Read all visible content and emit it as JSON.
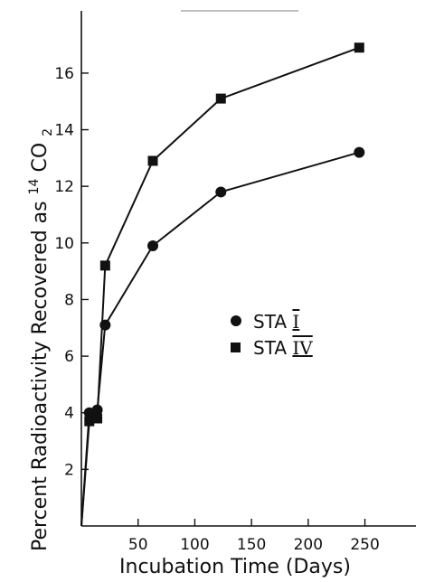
{
  "chart_data": {
    "type": "line",
    "title": "",
    "xlabel": "Incubation Time (Days)",
    "ylabel": "Percent Radioactivity Recovered as ",
    "ylabel_isotope": "14",
    "ylabel_compound": "CO",
    "ylabel_subscript": "2",
    "xlim": [
      0,
      295
    ],
    "ylim": [
      0,
      18.2
    ],
    "x_ticks": [
      50,
      100,
      150,
      200,
      250
    ],
    "x_tick_labels": [
      "50",
      "100",
      "150",
      "200",
      "250"
    ],
    "y_ticks": [
      2,
      4,
      6,
      8,
      10,
      12,
      14,
      16
    ],
    "y_tick_labels": [
      "2",
      "4",
      "6",
      "8",
      "10",
      "12",
      "14",
      "16"
    ],
    "grid": false,
    "legend_position": "center-right",
    "series": [
      {
        "name": "STA I",
        "label_prefix": "STA",
        "label_numeral": "I",
        "marker": "circle",
        "x": [
          0,
          7,
          14,
          21,
          63,
          123,
          245
        ],
        "y": [
          0,
          4.0,
          4.1,
          7.1,
          9.9,
          11.8,
          13.2
        ]
      },
      {
        "name": "STA IV",
        "label_prefix": "STA",
        "label_numeral": "IV",
        "marker": "square",
        "x": [
          0,
          7,
          14,
          21,
          63,
          123,
          245
        ],
        "y": [
          0,
          3.7,
          3.8,
          9.2,
          12.9,
          15.1,
          16.9
        ]
      }
    ]
  }
}
